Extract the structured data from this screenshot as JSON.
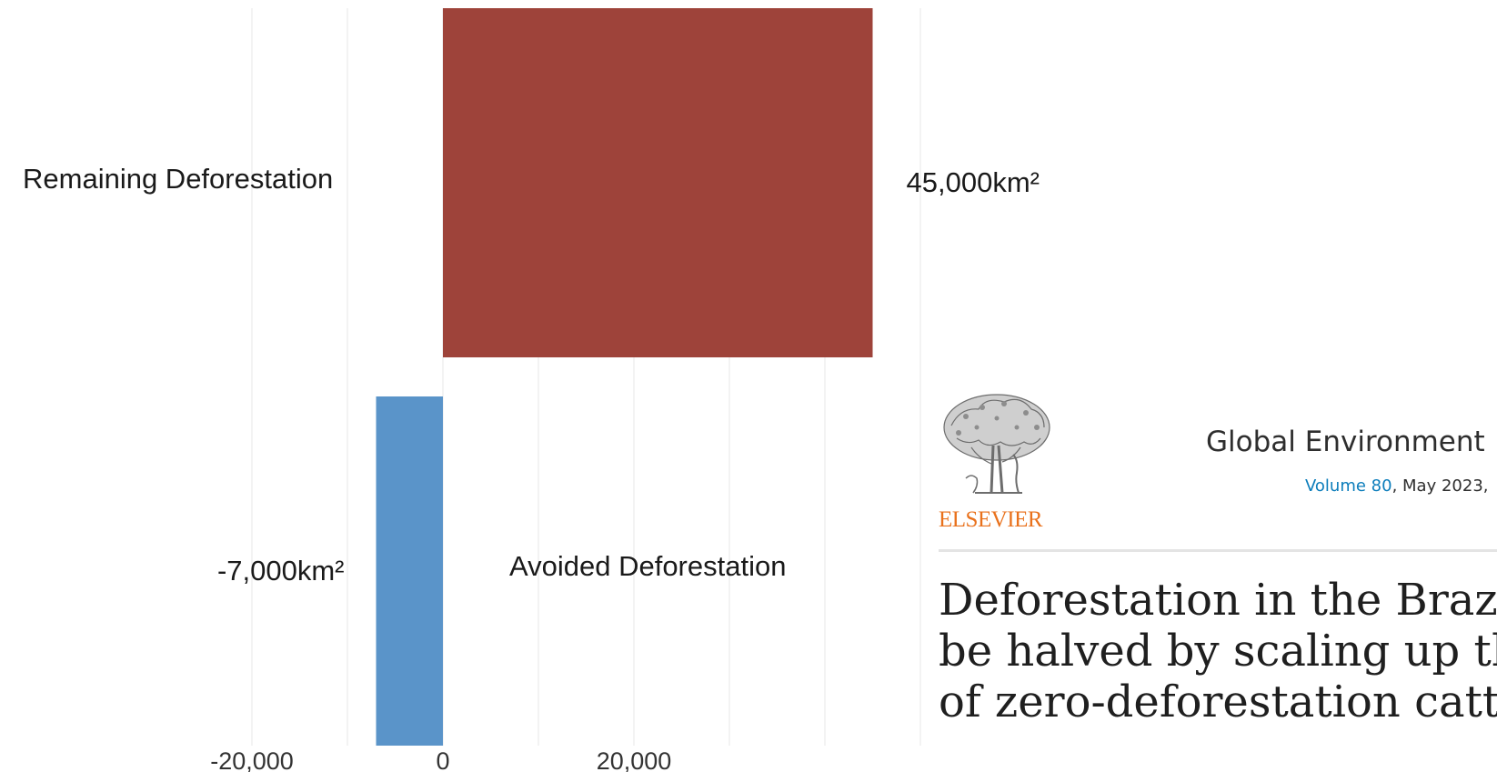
{
  "chart_data": {
    "type": "bar",
    "orientation": "horizontal",
    "categories": [
      "Remaining Deforestation",
      "Avoided Deforestation"
    ],
    "values": [
      45000,
      -7000
    ],
    "data_labels": [
      "45,000km²",
      "-7,000km²"
    ],
    "colors": [
      "#9e433a",
      "#5a94c9"
    ],
    "x_ticks": [
      -20000,
      0,
      20000
    ],
    "x_tick_labels": [
      "-20,000",
      "0",
      "20,000"
    ],
    "xlim": [
      -20000,
      55000
    ],
    "grid": true,
    "title": "",
    "xlabel": "",
    "ylabel": ""
  },
  "article": {
    "publisher": "ELSEVIER",
    "journal": "Global Environment",
    "volume_link": "Volume 80",
    "issue_date": ", May 2023,",
    "title_lines": [
      "Deforestation in the Brazil",
      "be halved by scaling up th",
      "of zero-deforestation cattl"
    ],
    "colors": {
      "publisher": "#e9711c",
      "link": "#0c7dbb"
    },
    "logo_icon": "elsevier-tree-logo"
  }
}
